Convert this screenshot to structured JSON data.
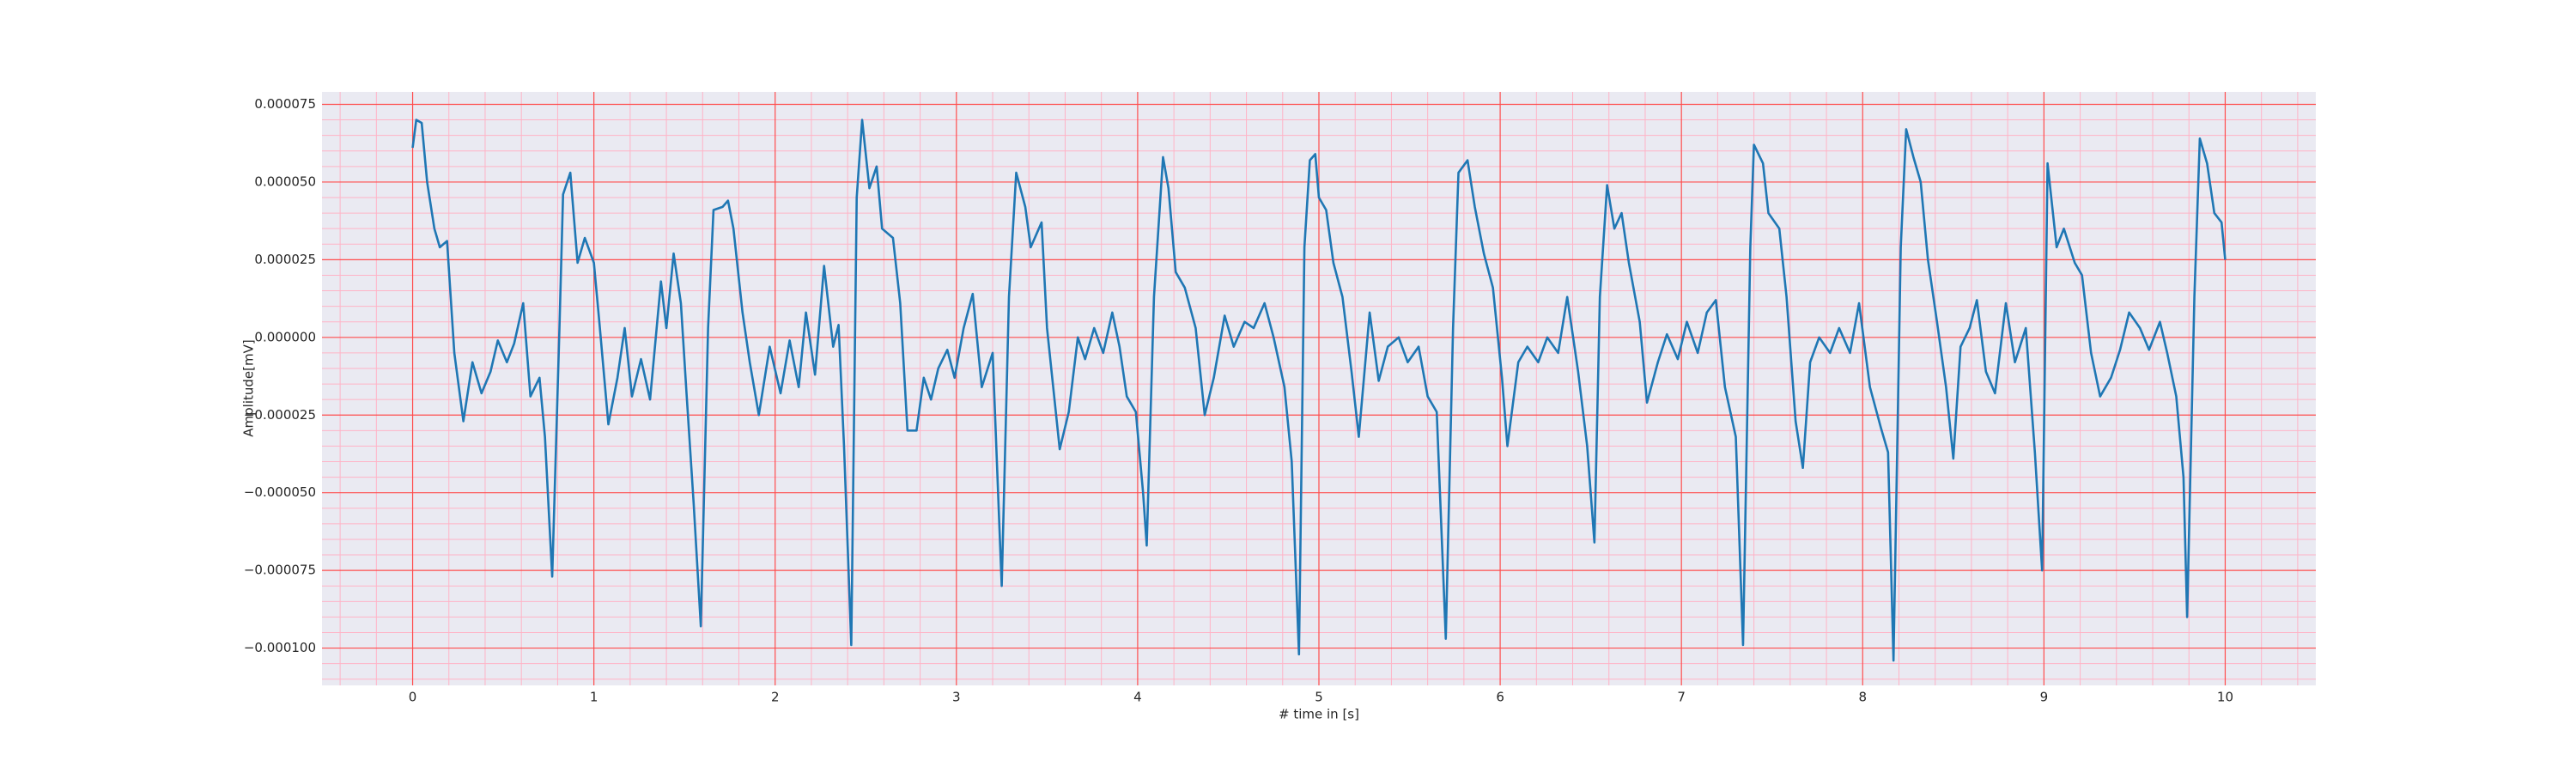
{
  "chart_data": {
    "type": "line",
    "xlabel": "# time in [s]",
    "ylabel": "Amplitude[mV]",
    "xlim": [
      -0.5,
      10.5
    ],
    "ylim": [
      -0.000112,
      7.9e-05
    ],
    "xticks": [
      0,
      1,
      2,
      3,
      4,
      5,
      6,
      7,
      8,
      9,
      10
    ],
    "yticks": [
      {
        "value": -0.0001,
        "label": "−0.000100"
      },
      {
        "value": -7.5e-05,
        "label": "−0.000075"
      },
      {
        "value": -5e-05,
        "label": "−0.000050"
      },
      {
        "value": -2.5e-05,
        "label": "−0.000025"
      },
      {
        "value": 0,
        "label": "0.000000"
      },
      {
        "value": 2.5e-05,
        "label": "0.000025"
      },
      {
        "value": 5e-05,
        "label": "0.000050"
      },
      {
        "value": 7.5e-05,
        "label": "0.000075"
      }
    ],
    "grid": true,
    "minor_grid": true,
    "grid_color": "#ff4d4d",
    "minor_grid_color": "#ffb3c6",
    "background": "#eaeaf2",
    "series": [
      {
        "color": "#1f77b4",
        "x": [
          0,
          0.02,
          0.05,
          0.08,
          0.12,
          0.15,
          0.19,
          0.23,
          0.28,
          0.33,
          0.38,
          0.43,
          0.47,
          0.52,
          0.56,
          0.61,
          0.65,
          0.7,
          0.73,
          0.77,
          0.81,
          0.83,
          0.87,
          0.91,
          0.95,
          1.0,
          1.03,
          1.08,
          1.13,
          1.17,
          1.21,
          1.26,
          1.31,
          1.37,
          1.4,
          1.44,
          1.48,
          1.51,
          1.55,
          1.59,
          1.63,
          1.66,
          1.71,
          1.74,
          1.77,
          1.82,
          1.86,
          1.91,
          1.97,
          2.03,
          2.08,
          2.13,
          2.17,
          2.22,
          2.27,
          2.32,
          2.35,
          2.38,
          2.42,
          2.45,
          2.48,
          2.52,
          2.56,
          2.59,
          2.65,
          2.69,
          2.73,
          2.78,
          2.82,
          2.86,
          2.9,
          2.95,
          2.99,
          3.04,
          3.09,
          3.14,
          3.2,
          3.22,
          3.25,
          3.29,
          3.33,
          3.38,
          3.41,
          3.47,
          3.5,
          3.57,
          3.62,
          3.67,
          3.71,
          3.76,
          3.81,
          3.86,
          3.9,
          3.94,
          3.99,
          4.03,
          4.05,
          4.09,
          4.14,
          4.17,
          4.21,
          4.26,
          4.32,
          4.37,
          4.42,
          4.48,
          4.53,
          4.59,
          4.64,
          4.7,
          4.75,
          4.81,
          4.85,
          4.89,
          4.92,
          4.95,
          4.98,
          5.0,
          5.04,
          5.08,
          5.13,
          5.18,
          5.22,
          5.28,
          5.33,
          5.38,
          5.44,
          5.49,
          5.55,
          5.6,
          5.65,
          5.7,
          5.74,
          5.77,
          5.82,
          5.86,
          5.91,
          5.96,
          6.01,
          6.04,
          6.1,
          6.15,
          6.21,
          6.26,
          6.32,
          6.37,
          6.43,
          6.48,
          6.52,
          6.55,
          6.59,
          6.63,
          6.67,
          6.71,
          6.77,
          6.81,
          6.87,
          6.92,
          6.98,
          7.03,
          7.09,
          7.14,
          7.19,
          7.24,
          7.3,
          7.34,
          7.38,
          7.4,
          7.45,
          7.48,
          7.54,
          7.58,
          7.63,
          7.67,
          7.71,
          7.76,
          7.82,
          7.87,
          7.93,
          7.98,
          8.04,
          8.1,
          8.14,
          8.17,
          8.21,
          8.24,
          8.28,
          8.32,
          8.36,
          8.41,
          8.46,
          8.5,
          8.54,
          8.59,
          8.63,
          8.68,
          8.73,
          8.79,
          8.84,
          8.9,
          8.95,
          8.99,
          9.02,
          9.07,
          9.11,
          9.17,
          9.21,
          9.26,
          9.31,
          9.37,
          9.42,
          9.47,
          9.53,
          9.58,
          9.64,
          9.68,
          9.73,
          9.77,
          9.79,
          9.83,
          9.86,
          9.9,
          9.94,
          9.98,
          10.0
        ],
        "values": [
          6.1e-05,
          7e-05,
          6.9e-05,
          5e-05,
          3.5e-05,
          2.9e-05,
          3.1e-05,
          -5e-06,
          -2.7e-05,
          -8e-06,
          -1.8e-05,
          -1.1e-05,
          -1e-06,
          -8e-06,
          -2e-06,
          1.1e-05,
          -1.9e-05,
          -1.3e-05,
          -3.2e-05,
          -7.7e-05,
          3e-06,
          4.6e-05,
          5.3e-05,
          2.4e-05,
          3.2e-05,
          2.4e-05,
          5e-06,
          -2.8e-05,
          -1.3e-05,
          3e-06,
          -1.9e-05,
          -7e-06,
          -2e-05,
          1.8e-05,
          3e-06,
          2.7e-05,
          1.1e-05,
          -1.7e-05,
          -5.3e-05,
          -9.3e-05,
          3e-06,
          4.1e-05,
          4.2e-05,
          4.4e-05,
          3.5e-05,
          8e-06,
          -8e-06,
          -2.5e-05,
          -3e-06,
          -1.8e-05,
          -1e-06,
          -1.6e-05,
          8e-06,
          -1.2e-05,
          2.3e-05,
          -3e-06,
          4e-06,
          -3.5e-05,
          -9.9e-05,
          4.5e-05,
          7e-05,
          4.8e-05,
          5.5e-05,
          3.5e-05,
          3.2e-05,
          1.1e-05,
          -3e-05,
          -3e-05,
          -1.3e-05,
          -2e-05,
          -1e-05,
          -4e-06,
          -1.3e-05,
          3e-06,
          1.4e-05,
          -1.6e-05,
          -5e-06,
          -3.5e-05,
          -8e-05,
          1.3e-05,
          5.3e-05,
          4.2e-05,
          2.9e-05,
          3.7e-05,
          3e-06,
          -3.6e-05,
          -2.4e-05,
          0,
          -7e-06,
          3e-06,
          -5e-06,
          8e-06,
          -3e-06,
          -1.9e-05,
          -2.4e-05,
          -5e-05,
          -6.7e-05,
          1.3e-05,
          5.8e-05,
          4.8e-05,
          2.1e-05,
          1.6e-05,
          3e-06,
          -2.5e-05,
          -1.3e-05,
          7e-06,
          -3e-06,
          5e-06,
          3e-06,
          1.1e-05,
          0,
          -1.6e-05,
          -4e-05,
          -0.000102,
          2.9e-05,
          5.7e-05,
          5.9e-05,
          4.5e-05,
          4.1e-05,
          2.4e-05,
          1.3e-05,
          -1.1e-05,
          -3.2e-05,
          8e-06,
          -1.4e-05,
          -3e-06,
          0,
          -8e-06,
          -3e-06,
          -1.9e-05,
          -2.4e-05,
          -9.7e-05,
          3e-06,
          5.3e-05,
          5.7e-05,
          4.2e-05,
          2.7e-05,
          1.6e-05,
          -1.3e-05,
          -3.5e-05,
          -8e-06,
          -3e-06,
          -8e-06,
          0,
          -5e-06,
          1.3e-05,
          -1.1e-05,
          -3.5e-05,
          -6.6e-05,
          1.3e-05,
          4.9e-05,
          3.5e-05,
          4e-05,
          2.4e-05,
          5e-06,
          -2.1e-05,
          -8e-06,
          1e-06,
          -7e-06,
          5e-06,
          -5e-06,
          8e-06,
          1.2e-05,
          -1.6e-05,
          -3.2e-05,
          -9.9e-05,
          2.9e-05,
          6.2e-05,
          5.6e-05,
          4e-05,
          3.5e-05,
          1.3e-05,
          -2.7e-05,
          -4.2e-05,
          -8e-06,
          0,
          -5e-06,
          3e-06,
          -5e-06,
          1.1e-05,
          -1.6e-05,
          -2.9e-05,
          -3.7e-05,
          -0.000104,
          2.9e-05,
          6.7e-05,
          5.8e-05,
          5e-05,
          2.5e-05,
          5e-06,
          -1.6e-05,
          -3.9e-05,
          -3e-06,
          3e-06,
          1.2e-05,
          -1.1e-05,
          -1.8e-05,
          1.1e-05,
          -8e-06,
          3e-06,
          -3.7e-05,
          -7.5e-05,
          5.6e-05,
          2.9e-05,
          3.5e-05,
          2.4e-05,
          2e-05,
          -5e-06,
          -1.9e-05,
          -1.3e-05,
          -4e-06,
          8e-06,
          3e-06,
          -4e-06,
          5e-06,
          -5e-06,
          -1.9e-05,
          -4.5e-05,
          -9e-05,
          1.3e-05,
          6.4e-05,
          5.6e-05,
          4e-05,
          3.7e-05,
          2.5e-05
        ]
      }
    ]
  }
}
